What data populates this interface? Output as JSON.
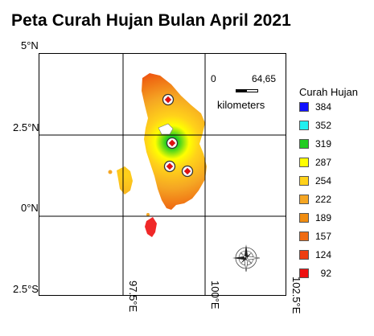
{
  "map": {
    "title": "Peta Curah Hujan Bulan April 2021",
    "lat_labels": [
      "5°N",
      "2.5°N",
      "0°N",
      "2.5°S"
    ],
    "lon_labels": [
      "97.5°E",
      "100°E",
      "102.5°E"
    ],
    "scale": {
      "start": "0",
      "end": "64,65",
      "unit": "kilometers"
    },
    "legend": {
      "title": "Curah Hujan",
      "items": [
        {
          "label": "384",
          "color": "#1010ff"
        },
        {
          "label": "352",
          "color": "#20f0f0"
        },
        {
          "label": "319",
          "color": "#22cc22"
        },
        {
          "label": "287",
          "color": "#ffff00"
        },
        {
          "label": "254",
          "color": "#ffd21a"
        },
        {
          "label": "222",
          "color": "#f5a623"
        },
        {
          "label": "189",
          "color": "#f08c10"
        },
        {
          "label": "157",
          "color": "#ef6a12"
        },
        {
          "label": "124",
          "color": "#ee3d10"
        },
        {
          "label": "92",
          "color": "#ee1111"
        }
      ]
    },
    "colors": {
      "rain_low": "#ee1111",
      "rain_mid": "#f5a623",
      "rain_high": "#22cc22",
      "grid": "#000000",
      "station_marker": "#dd1111"
    },
    "icons": [
      "compass-rose-icon",
      "station-marker-icon"
    ]
  }
}
